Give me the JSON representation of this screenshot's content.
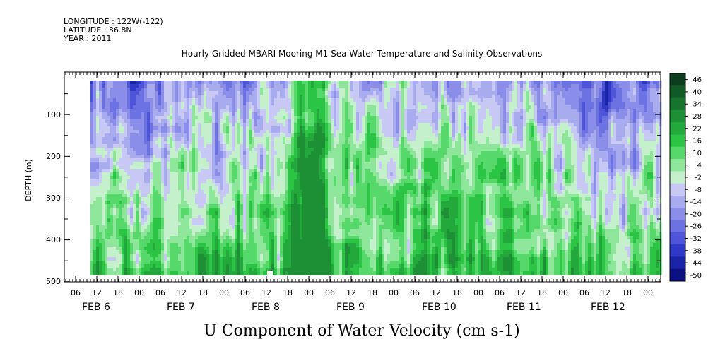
{
  "header": {
    "longitude": "LONGITUDE : 122W(-122)",
    "latitude": "LATITUDE : 36.8N",
    "year": "YEAR : 2011"
  },
  "chart_data": {
    "type": "heatmap",
    "title": "Hourly Gridded MBARI Mooring M1 Sea Water Temperature and Salinity Observations",
    "xlabel": "U Component of Water Velocity (cm s-1)",
    "ylabel": "DEPTH (m)",
    "x_hours": [
      6,
      12,
      18,
      0,
      6,
      12,
      18,
      0,
      6,
      12,
      18,
      0,
      6,
      12,
      18,
      0,
      6,
      12,
      18,
      0,
      6,
      12,
      18,
      0,
      6,
      12,
      18,
      0
    ],
    "x_tick_labels": [
      "06",
      "12",
      "18",
      "00",
      "06",
      "12",
      "18",
      "00",
      "06",
      "12",
      "18",
      "00",
      "06",
      "12",
      "18",
      "00",
      "06",
      "12",
      "18",
      "00",
      "06",
      "12",
      "18",
      "00",
      "06",
      "12",
      "18",
      "00"
    ],
    "date_labels": [
      "FEB  6",
      "FEB  7",
      "FEB  8",
      "FEB  9",
      "FEB 10",
      "FEB 11",
      "FEB 12"
    ],
    "y_ticks": [
      100,
      200,
      300,
      400,
      500
    ],
    "y_tick_labels": [
      "100",
      "200",
      "300",
      "400",
      "500"
    ],
    "ylim": [
      500,
      0
    ],
    "colorbar_levels": [
      46,
      40,
      34,
      28,
      22,
      16,
      10,
      4,
      -2,
      -8,
      -14,
      -20,
      -26,
      -32,
      -38,
      -44,
      -50
    ],
    "colorbar_labels": [
      "46",
      "40",
      "34",
      "28",
      "22",
      "16",
      "10",
      "4",
      "-2",
      "-8",
      "-14",
      "-20",
      "-26",
      "-32",
      "-38",
      "-44",
      "-50"
    ],
    "field_notes": "Velocity field: blue/lavender (negative, about -2 to -20) dominates the upper layer, especially FEB 6 and FEB 11-12; green (positive, about 4 to 22) dominates the deeper layer, with the strongest positive values near 400 m around FEB 9 00."
  }
}
